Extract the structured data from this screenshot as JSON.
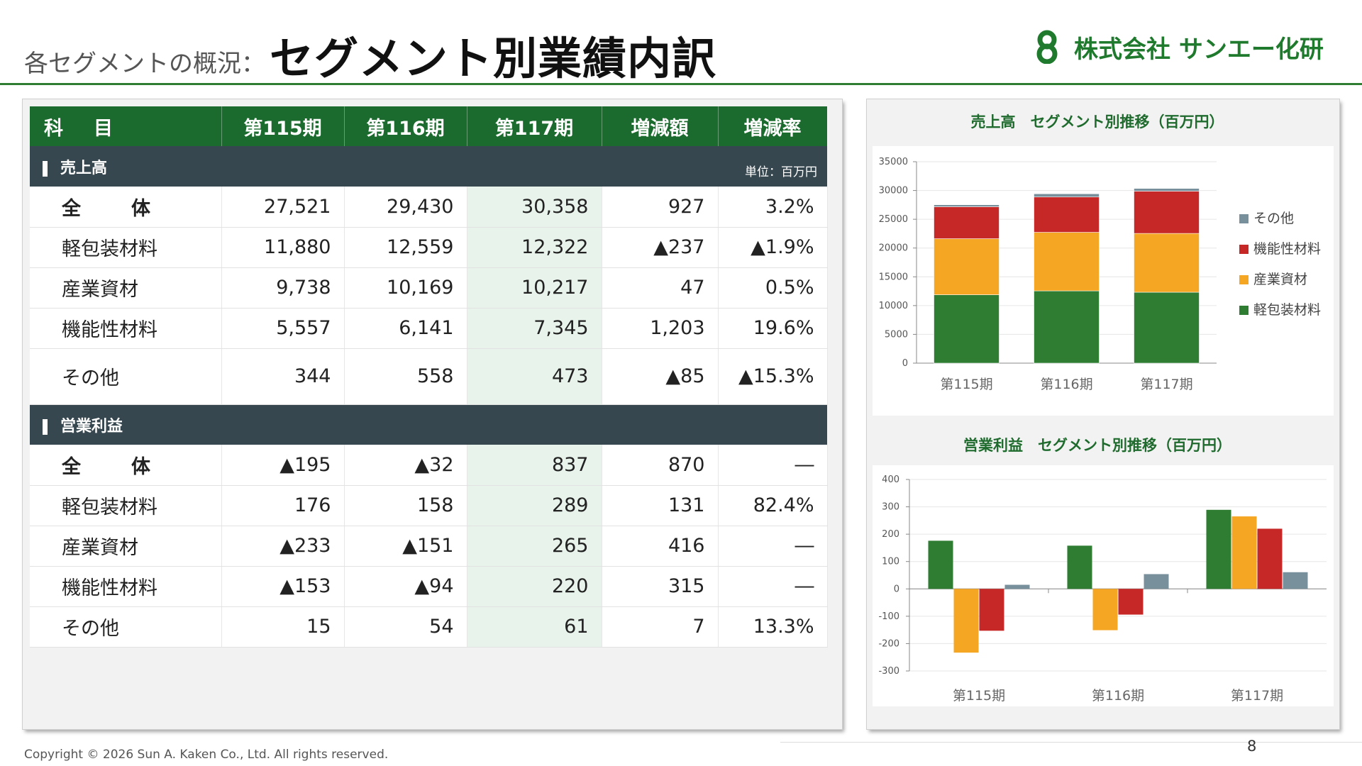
{
  "header": {
    "subtitle": "各セグメントの概況：",
    "title": "セグメント別業績内訳",
    "company": "株式会社 サンエー化研"
  },
  "table": {
    "columns": [
      "科　目",
      "第115期",
      "第116期",
      "第117期",
      "増減額",
      "増減率"
    ],
    "unit": "単位：百万円",
    "sections": [
      {
        "title": "売上高",
        "rows": [
          {
            "label": "全　体",
            "v115": "27,521",
            "v116": "29,430",
            "v117": "30,358",
            "diff": "927",
            "rate": "3.2%"
          },
          {
            "label": "軽包装材料",
            "v115": "11,880",
            "v116": "12,559",
            "v117": "12,322",
            "diff": "▲237",
            "rate": "▲1.9%"
          },
          {
            "label": "産業資材",
            "v115": "9,738",
            "v116": "10,169",
            "v117": "10,217",
            "diff": "47",
            "rate": "0.5%"
          },
          {
            "label": "機能性材料",
            "v115": "5,557",
            "v116": "6,141",
            "v117": "7,345",
            "diff": "1,203",
            "rate": "19.6%"
          },
          {
            "label": "その他",
            "v115": "344",
            "v116": "558",
            "v117": "473",
            "diff": "▲85",
            "rate": "▲15.3%"
          }
        ]
      },
      {
        "title": "営業利益",
        "rows": [
          {
            "label": "全　体",
            "v115": "▲195",
            "v116": "▲32",
            "v117": "837",
            "diff": "870",
            "rate": "―"
          },
          {
            "label": "軽包装材料",
            "v115": "176",
            "v116": "158",
            "v117": "289",
            "diff": "131",
            "rate": "82.4%"
          },
          {
            "label": "産業資材",
            "v115": "▲233",
            "v116": "▲151",
            "v117": "265",
            "diff": "416",
            "rate": "―"
          },
          {
            "label": "機能性材料",
            "v115": "▲153",
            "v116": "▲94",
            "v117": "220",
            "diff": "315",
            "rate": "―"
          },
          {
            "label": "その他",
            "v115": "15",
            "v116": "54",
            "v117": "61",
            "diff": "7",
            "rate": "13.3%"
          }
        ]
      }
    ]
  },
  "chart_data": [
    {
      "type": "bar",
      "stacked": true,
      "title": "売上高　セグメント別推移（百万円）",
      "categories": [
        "第115期",
        "第116期",
        "第117期"
      ],
      "ylim": [
        0,
        35000
      ],
      "yticks": [
        0,
        5000,
        10000,
        15000,
        20000,
        25000,
        30000,
        35000
      ],
      "series": [
        {
          "name": "軽包装材料",
          "color": "#2e7d32",
          "values": [
            11880,
            12559,
            12322
          ]
        },
        {
          "name": "産業資材",
          "color": "#f5a623",
          "values": [
            9738,
            10169,
            10217
          ]
        },
        {
          "name": "機能性材料",
          "color": "#c62828",
          "values": [
            5557,
            6141,
            7345
          ]
        },
        {
          "name": "その他",
          "color": "#78909c",
          "values": [
            344,
            558,
            473
          ]
        }
      ],
      "legend": "right"
    },
    {
      "type": "bar",
      "stacked": false,
      "title": "営業利益　セグメント別推移（百万円）",
      "categories": [
        "第115期",
        "第116期",
        "第117期"
      ],
      "ylim": [
        -300,
        400
      ],
      "yticks": [
        -300,
        -200,
        -100,
        0,
        100,
        200,
        300,
        400
      ],
      "series": [
        {
          "name": "軽包装材料",
          "color": "#2e7d32",
          "values": [
            176,
            158,
            289
          ]
        },
        {
          "name": "産業資材",
          "color": "#f5a623",
          "values": [
            -233,
            -151,
            265
          ]
        },
        {
          "name": "機能性材料",
          "color": "#c62828",
          "values": [
            -153,
            -94,
            220
          ]
        },
        {
          "name": "その他",
          "color": "#78909c",
          "values": [
            15,
            54,
            61
          ]
        }
      ]
    }
  ],
  "footer": {
    "copyright": "Copyright  © 2026 Sun A. Kaken Co., Ltd. All rights reserved.",
    "page": "8"
  }
}
